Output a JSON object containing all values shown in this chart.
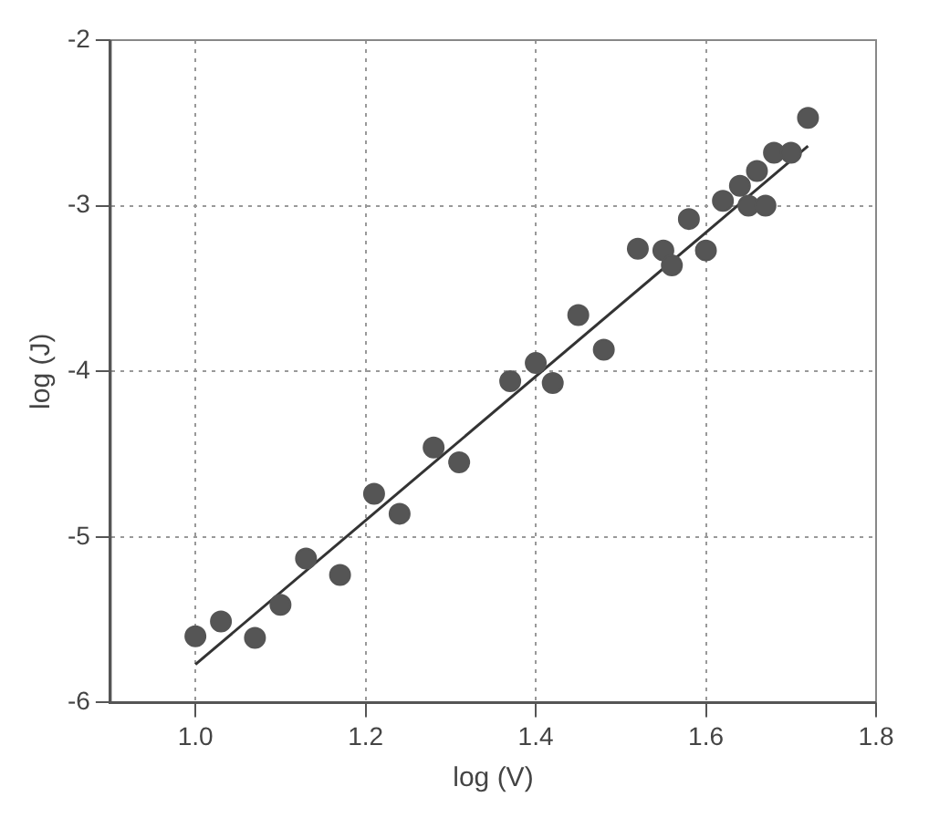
{
  "chart_data": {
    "type": "scatter",
    "xlabel": "log (V)",
    "ylabel": "log (J)",
    "xlim": [
      0.9,
      1.8
    ],
    "xticks": [
      {
        "value": 1.0,
        "label": "1.0"
      },
      1.2,
      1.4,
      1.6,
      1.8
    ],
    "ylim": [
      -6,
      -2
    ],
    "yticks": [
      -6,
      -5,
      -4,
      -3,
      -2
    ],
    "grid": true,
    "legend": false,
    "marker": "circle",
    "series": [
      {
        "color": "#555555",
        "x": [
          1.0,
          1.03,
          1.07,
          1.1,
          1.13,
          1.17,
          1.21,
          1.24,
          1.28,
          1.31,
          1.37,
          1.4,
          1.42,
          1.45,
          1.48,
          1.52,
          1.55,
          1.56,
          1.58,
          1.6,
          1.62,
          1.64,
          1.65,
          1.66,
          1.67,
          1.68,
          1.7,
          1.72
        ],
        "values": [
          -5.6,
          -5.51,
          -5.61,
          -5.41,
          -5.13,
          -5.23,
          -4.74,
          -4.86,
          -4.46,
          -4.55,
          -4.06,
          -3.95,
          -4.07,
          -3.66,
          -3.87,
          -3.26,
          -3.27,
          -3.36,
          -3.08,
          -3.27,
          -2.97,
          -2.88,
          -3.0,
          -2.79,
          -3.0,
          -2.68,
          -2.68,
          -2.47
        ]
      },
      {
        "type": "line",
        "color": "#333333",
        "x": [
          1.0,
          1.72
        ],
        "values": [
          -5.77,
          -2.64
        ],
        "marker": "none",
        "line_style": "solid"
      }
    ]
  }
}
